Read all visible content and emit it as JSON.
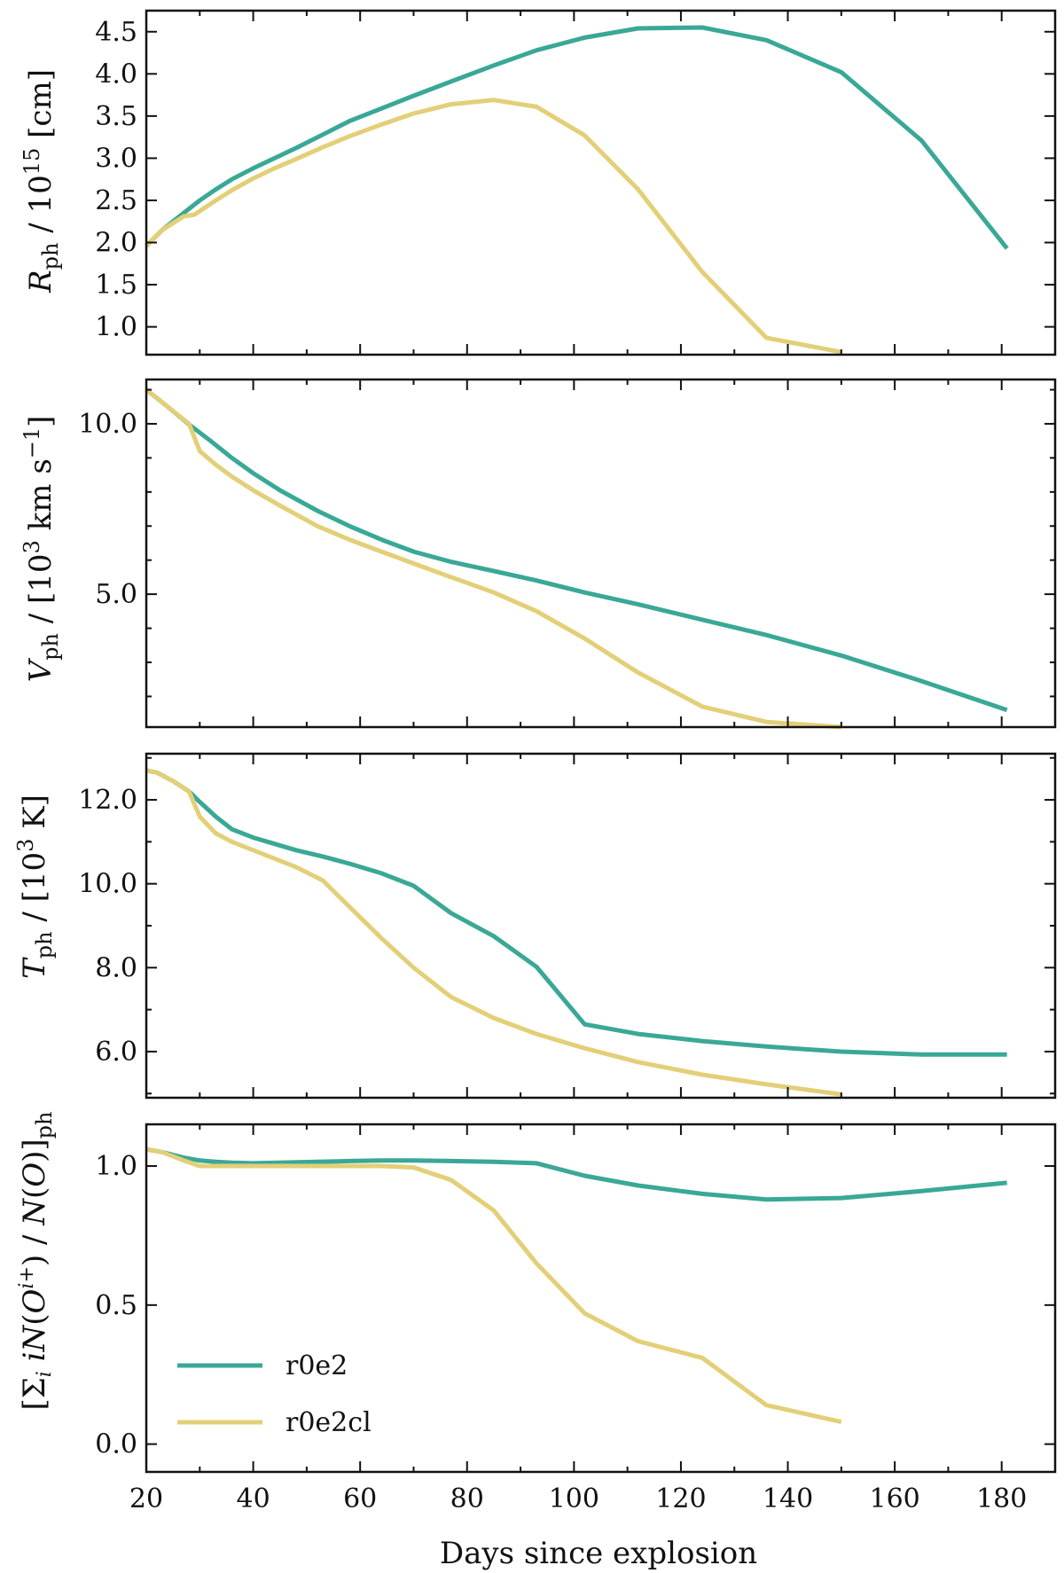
{
  "colors": {
    "r0e2": "#3aa896",
    "r0e2cl": "#e3cf78"
  },
  "xlabel": "Days since explosion",
  "x_ticks": [
    20,
    40,
    60,
    80,
    100,
    120,
    140,
    160,
    180
  ],
  "chart_data": [
    {
      "type": "line",
      "ylabel": "Rph / 10^15 [cm]",
      "xlim": [
        20,
        190
      ],
      "ylim": [
        0.67,
        4.75
      ],
      "y_ticks": [
        1.0,
        1.5,
        2.0,
        2.5,
        3.0,
        3.5,
        4.0,
        4.5
      ],
      "y_tick_labels": [
        "1.0",
        "1.5",
        "2.0",
        "2.5",
        "3.0",
        "3.5",
        "4.0",
        "4.5"
      ],
      "y_minor_ticks": [],
      "series": [
        {
          "name": "r0e2",
          "color_key": "r0e2",
          "x": [
            20,
            23,
            27,
            30,
            33,
            36,
            40,
            44,
            48,
            53,
            58,
            64,
            70,
            77,
            85,
            93,
            102,
            112,
            124,
            136,
            150,
            165,
            181
          ],
          "y": [
            1.96,
            2.15,
            2.35,
            2.5,
            2.63,
            2.75,
            2.88,
            3.0,
            3.12,
            3.28,
            3.44,
            3.59,
            3.74,
            3.91,
            4.1,
            4.28,
            4.43,
            4.54,
            4.55,
            4.4,
            4.02,
            3.21,
            1.93
          ]
        },
        {
          "name": "r0e2cl",
          "color_key": "r0e2cl",
          "x": [
            20,
            23,
            27,
            29,
            33,
            36,
            40,
            44,
            48,
            53,
            58,
            64,
            70,
            77,
            85,
            93,
            102,
            112,
            124,
            136,
            150
          ],
          "y": [
            1.96,
            2.15,
            2.31,
            2.33,
            2.5,
            2.62,
            2.76,
            2.88,
            2.99,
            3.13,
            3.26,
            3.4,
            3.53,
            3.64,
            3.69,
            3.61,
            3.27,
            2.63,
            1.65,
            0.87,
            0.7
          ]
        }
      ]
    },
    {
      "type": "line",
      "ylabel": "Vph / [10^3 km s^-1]",
      "xlim": [
        20,
        190
      ],
      "ylim": [
        1.1,
        11.3
      ],
      "y_ticks": [
        5.0,
        10.0
      ],
      "y_tick_labels": [
        "5.0",
        "10.0"
      ],
      "y_minor_ticks": [
        1.0,
        2.0,
        3.0,
        4.0,
        6.0,
        7.0,
        8.0,
        9.0,
        11.0
      ],
      "series": [
        {
          "name": "r0e2",
          "color_key": "r0e2",
          "x": [
            20,
            24,
            28,
            32,
            36,
            40,
            45,
            52,
            58,
            64,
            70,
            77,
            85,
            93,
            102,
            112,
            124,
            136,
            150,
            165,
            181
          ],
          "y": [
            11.0,
            10.5,
            9.98,
            9.5,
            9.0,
            8.55,
            8.05,
            7.45,
            7.0,
            6.6,
            6.25,
            5.95,
            5.68,
            5.4,
            5.05,
            4.7,
            4.25,
            3.8,
            3.2,
            2.45,
            1.6
          ]
        },
        {
          "name": "r0e2cl",
          "color_key": "r0e2cl",
          "x": [
            20,
            24,
            28,
            30,
            33,
            36,
            40,
            45,
            52,
            58,
            64,
            70,
            77,
            85,
            93,
            102,
            112,
            124,
            136,
            150
          ],
          "y": [
            11.0,
            10.5,
            10.0,
            9.2,
            8.8,
            8.45,
            8.05,
            7.6,
            7.0,
            6.6,
            6.25,
            5.9,
            5.5,
            5.05,
            4.5,
            3.7,
            2.7,
            1.7,
            1.25,
            1.1
          ]
        }
      ]
    },
    {
      "type": "line",
      "ylabel": "Tph / [10^3 K]",
      "xlim": [
        20,
        190
      ],
      "ylim": [
        4.9,
        13.1
      ],
      "y_ticks": [
        6.0,
        8.0,
        10.0,
        12.0
      ],
      "y_tick_labels": [
        "6.0",
        "8.0",
        "10.0",
        "12.0"
      ],
      "y_minor_ticks": [
        5.0,
        7.0,
        9.0,
        11.0,
        13.0
      ],
      "series": [
        {
          "name": "r0e2",
          "color_key": "r0e2",
          "x": [
            20,
            22,
            25,
            28,
            30,
            33,
            36,
            40,
            44,
            48,
            53,
            58,
            64,
            70,
            77,
            85,
            93,
            102,
            112,
            124,
            136,
            150,
            165,
            181
          ],
          "y": [
            12.7,
            12.65,
            12.45,
            12.2,
            11.95,
            11.6,
            11.3,
            11.1,
            10.95,
            10.8,
            10.65,
            10.48,
            10.25,
            9.95,
            9.3,
            8.75,
            8.02,
            6.65,
            6.42,
            6.25,
            6.12,
            6.0,
            5.93,
            5.93
          ]
        },
        {
          "name": "r0e2cl",
          "color_key": "r0e2cl",
          "x": [
            20,
            22,
            25,
            28,
            30,
            33,
            36,
            40,
            44,
            48,
            53,
            58,
            64,
            70,
            77,
            85,
            93,
            102,
            112,
            124,
            136,
            150
          ],
          "y": [
            12.7,
            12.65,
            12.45,
            12.2,
            11.6,
            11.2,
            11.0,
            10.8,
            10.6,
            10.4,
            10.08,
            9.45,
            8.7,
            8.0,
            7.3,
            6.8,
            6.42,
            6.08,
            5.75,
            5.45,
            5.22,
            4.98
          ]
        }
      ]
    },
    {
      "type": "line",
      "ylabel": "[Σi iN(O^i+) / N(O)]ph",
      "xlim": [
        20,
        190
      ],
      "ylim": [
        -0.1,
        1.15
      ],
      "y_ticks": [
        0.0,
        0.5,
        1.0
      ],
      "y_tick_labels": [
        "0.0",
        "0.5",
        "1.0"
      ],
      "y_minor_ticks": [],
      "legend": {
        "position": "lower-left",
        "entries": [
          "r0e2",
          "r0e2cl"
        ]
      },
      "series": [
        {
          "name": "r0e2",
          "color_key": "r0e2",
          "x": [
            20,
            23,
            27,
            30,
            33,
            36,
            40,
            45,
            52,
            58,
            64,
            70,
            77,
            85,
            93,
            102,
            112,
            124,
            136,
            150,
            165,
            181
          ],
          "y": [
            1.06,
            1.05,
            1.03,
            1.02,
            1.015,
            1.012,
            1.01,
            1.012,
            1.015,
            1.018,
            1.02,
            1.02,
            1.018,
            1.015,
            1.01,
            0.965,
            0.93,
            0.9,
            0.88,
            0.885,
            0.91,
            0.94
          ]
        },
        {
          "name": "r0e2cl",
          "color_key": "r0e2cl",
          "x": [
            20,
            23,
            27,
            30,
            33,
            36,
            40,
            45,
            52,
            58,
            64,
            70,
            77,
            85,
            93,
            102,
            112,
            124,
            136,
            150
          ],
          "y": [
            1.06,
            1.05,
            1.02,
            1.0,
            1.0,
            1.0,
            1.0,
            1.0,
            1.0,
            1.0,
            1.0,
            0.995,
            0.95,
            0.84,
            0.65,
            0.47,
            0.37,
            0.31,
            0.14,
            0.08
          ]
        }
      ]
    }
  ]
}
